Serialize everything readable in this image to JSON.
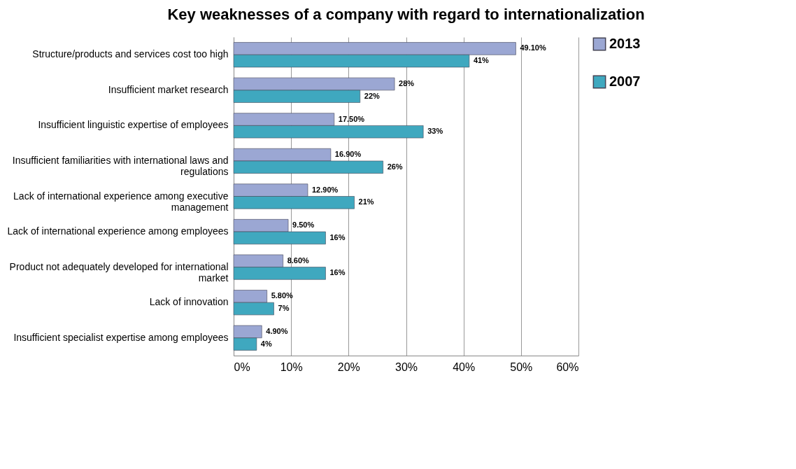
{
  "chart_data": {
    "type": "bar",
    "orientation": "horizontal",
    "title": "Key weaknesses of a company with regard to internationalization",
    "categories": [
      "Structure/products and services cost too high",
      "Insufficient market research",
      "Insufficient linguistic expertise of employees",
      "Insufficient familiarities with international laws and regulations",
      "Lack of international experience among executive management",
      "Lack of international experience among employees",
      "Product not adequately developed for international market",
      "Lack of innovation",
      "Insufficient specialist expertise among employees"
    ],
    "series": [
      {
        "name": "2013",
        "color": "#9ba7d3",
        "values": [
          49.1,
          28,
          17.5,
          16.9,
          12.9,
          9.5,
          8.6,
          5.8,
          4.9
        ],
        "value_labels": [
          "49.10%",
          "28%",
          "17.50%",
          "16.90%",
          "12.90%",
          "9.50%",
          "8.60%",
          "5.80%",
          "4.90%"
        ]
      },
      {
        "name": "2007",
        "color": "#3fa8bf",
        "values": [
          41,
          22,
          33,
          26,
          21,
          16,
          16,
          7,
          4
        ],
        "value_labels": [
          "41%",
          "22%",
          "33%",
          "26%",
          "21%",
          "16%",
          "16%",
          "7%",
          "4%"
        ]
      }
    ],
    "xlim": [
      0,
      60
    ],
    "xticks": [
      {
        "value": 0,
        "label": "0%"
      },
      {
        "value": 10,
        "label": "10%"
      },
      {
        "value": 20,
        "label": "20%"
      },
      {
        "value": 30,
        "label": "30%"
      },
      {
        "value": 40,
        "label": "40%"
      },
      {
        "value": 50,
        "label": "50%"
      },
      {
        "value": 60,
        "label": "60%"
      }
    ],
    "grid": "x",
    "legend": "right"
  }
}
